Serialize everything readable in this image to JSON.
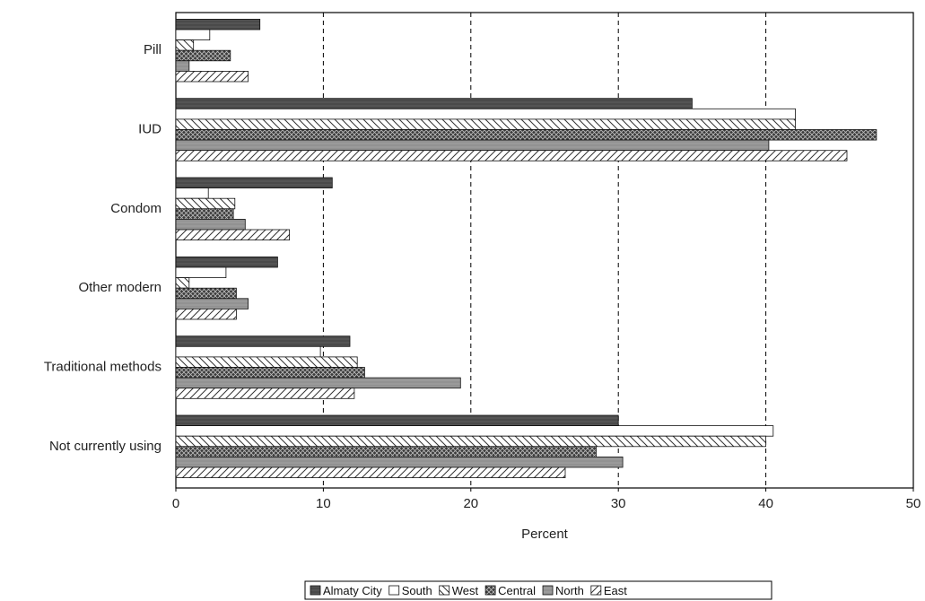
{
  "chart_data": {
    "type": "bar",
    "orientation": "horizontal",
    "categories": [
      "Pill",
      "IUD",
      "Condom",
      "Other modern",
      "Traditional methods",
      "Not currently using"
    ],
    "series": [
      {
        "name": "Almaty City",
        "values": [
          5.7,
          35.0,
          10.6,
          6.9,
          11.8,
          30.0
        ]
      },
      {
        "name": "South",
        "values": [
          2.3,
          42.0,
          2.2,
          3.4,
          9.8,
          40.5
        ]
      },
      {
        "name": "West",
        "values": [
          1.2,
          42.0,
          4.0,
          0.9,
          12.3,
          40.0
        ]
      },
      {
        "name": "Central",
        "values": [
          3.7,
          47.5,
          3.9,
          4.1,
          12.8,
          28.5
        ]
      },
      {
        "name": "North",
        "values": [
          0.9,
          40.2,
          4.7,
          4.9,
          19.3,
          30.3
        ]
      },
      {
        "name": "East",
        "values": [
          4.9,
          45.5,
          7.7,
          4.1,
          12.1,
          26.4
        ]
      }
    ],
    "xlabel": "Percent",
    "xlim": [
      0,
      50
    ],
    "xticks": [
      "0",
      "10",
      "20",
      "30",
      "40",
      "50"
    ],
    "grid": "vertical dashed",
    "legend_position": "bottom"
  },
  "series_styles": [
    {
      "fill": "#4a4a4a",
      "pattern": "solid-dark"
    },
    {
      "fill": "#ffffff",
      "pattern": "none"
    },
    {
      "fill": "#ffffff",
      "pattern": "diag-back"
    },
    {
      "fill": "#555555",
      "pattern": "crosshatch"
    },
    {
      "fill": "#9a9a9a",
      "pattern": "solid-gray"
    },
    {
      "fill": "#ffffff",
      "pattern": "diag-forward"
    }
  ]
}
